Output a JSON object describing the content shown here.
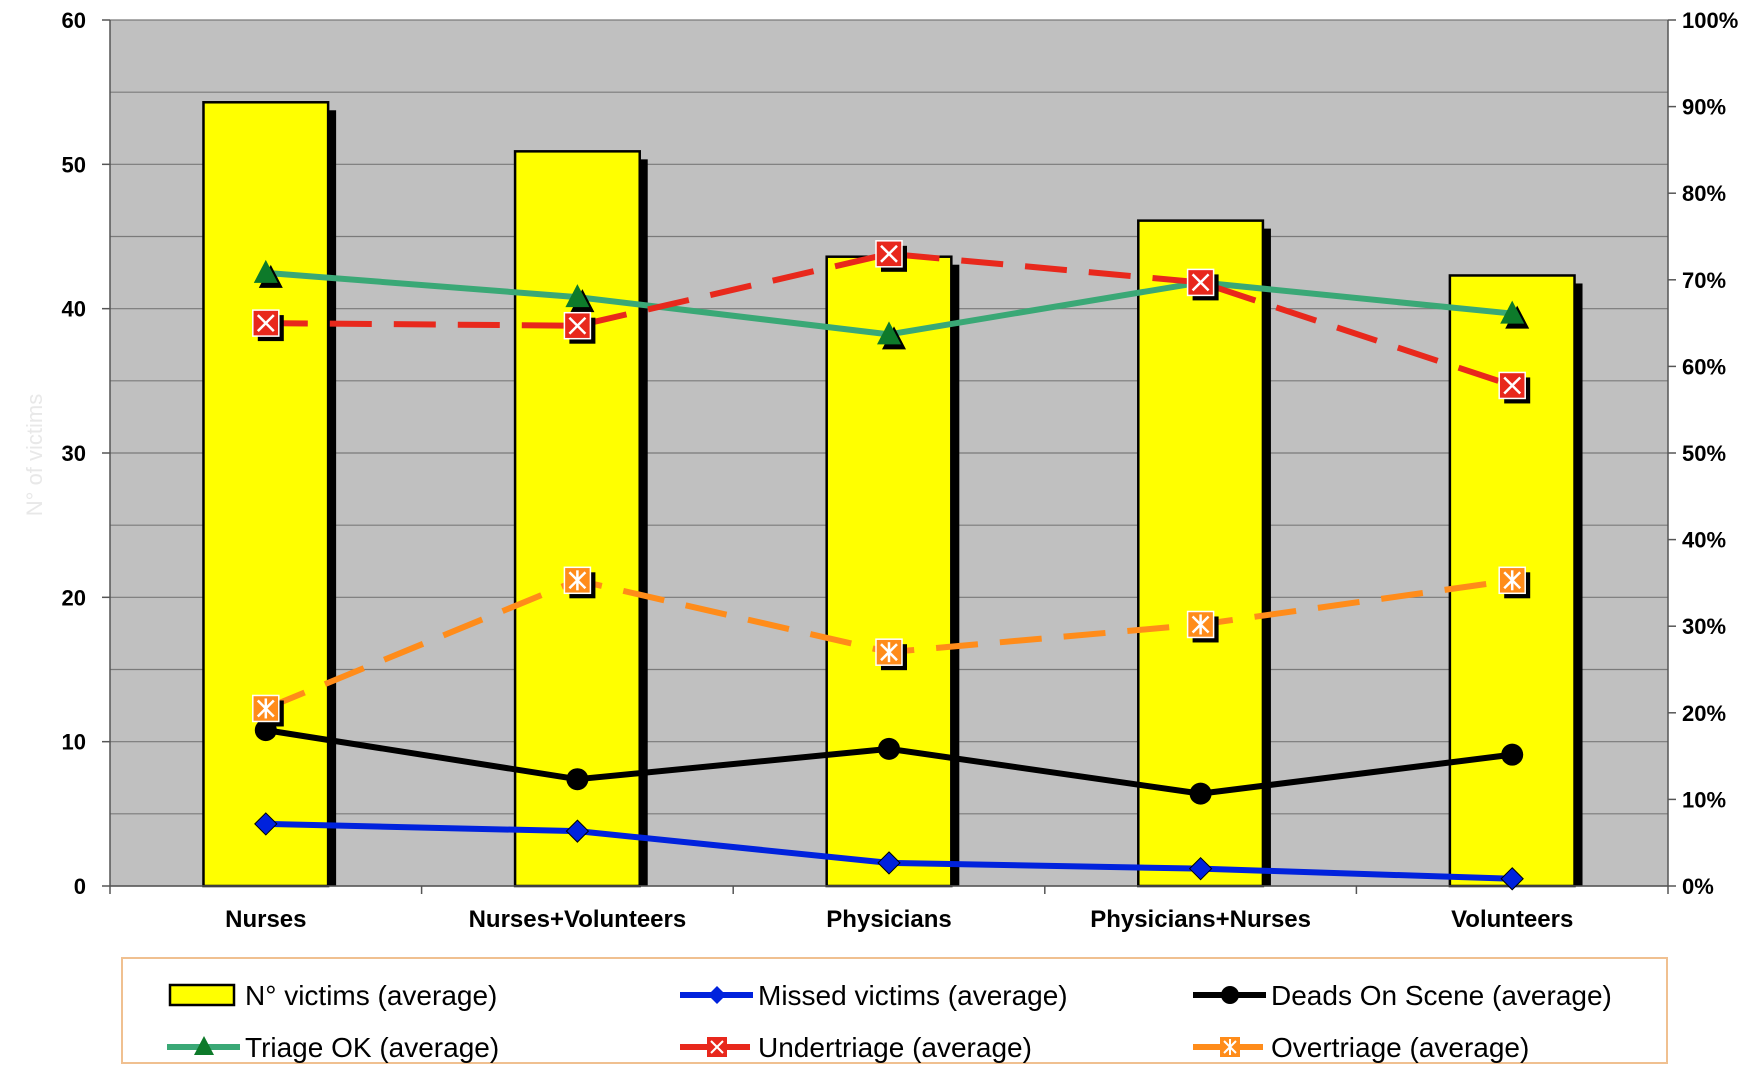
{
  "chart_data": {
    "type": "bar",
    "categories": [
      "Nurses",
      "Nurses+Volunteers",
      "Physicians",
      "Physicians+Nurses",
      "Volunteers"
    ],
    "ylabel": "N° of victims",
    "ylim": [
      0,
      60
    ],
    "yticks": [
      "0",
      "10",
      "20",
      "30",
      "40",
      "50",
      "60"
    ],
    "y2lim": [
      0,
      100
    ],
    "y2ticks": [
      "0%",
      "10%",
      "20%",
      "30%",
      "40%",
      "50%",
      "60%",
      "70%",
      "80%",
      "90%",
      "100%"
    ],
    "grid": true,
    "legend_position": "bottom",
    "colors": {
      "plot_bg": "#c0c0c0",
      "bar_fill": "#ffff00",
      "missed": "#0022dd",
      "deads": "#000000",
      "triage_ok": "#3aa876",
      "undertriage": "#e8281c",
      "overtriage": "#ff8c1a",
      "legend_border": "#f0c090"
    },
    "series": [
      {
        "name": "N° victims (average)",
        "kind": "bar",
        "axis": "left",
        "marker": "box",
        "color": "#ffff00",
        "values": [
          54.3,
          50.9,
          43.6,
          46.1,
          42.3
        ]
      },
      {
        "name": "Missed victims (average)",
        "kind": "line",
        "axis": "left",
        "marker": "diamond",
        "color": "#0022dd",
        "dash": "solid",
        "values": [
          4.3,
          3.8,
          1.6,
          1.2,
          0.5
        ]
      },
      {
        "name": "Deads On Scene (average)",
        "kind": "line",
        "axis": "left",
        "marker": "circle",
        "color": "#000000",
        "dash": "solid",
        "values": [
          10.8,
          7.4,
          9.5,
          6.4,
          9.1
        ]
      },
      {
        "name": "Triage OK (average)",
        "kind": "line",
        "axis": "right",
        "marker": "triangle",
        "color": "#3aa876",
        "dash": "solid",
        "values": [
          70.8,
          68.0,
          63.7,
          69.7,
          66.1
        ]
      },
      {
        "name": "Undertriage (average)",
        "kind": "line",
        "axis": "right",
        "marker": "xbox",
        "color": "#e8281c",
        "dash": "dashed",
        "values": [
          65.0,
          64.7,
          73.0,
          69.7,
          57.8
        ]
      },
      {
        "name": "Overtriage (average)",
        "kind": "line",
        "axis": "right",
        "marker": "asterbox",
        "color": "#ff8c1a",
        "dash": "dashed",
        "values": [
          20.5,
          35.3,
          27.0,
          30.2,
          35.3
        ]
      }
    ]
  }
}
